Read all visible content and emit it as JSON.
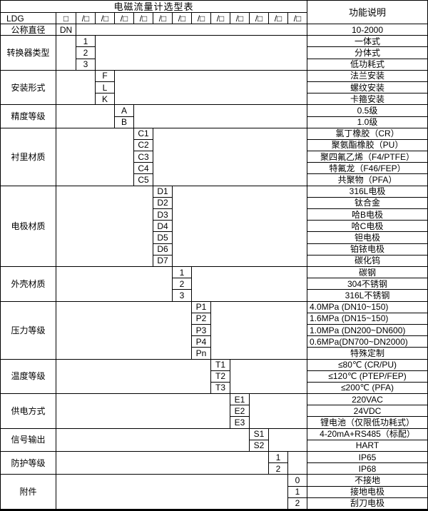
{
  "table": {
    "title": "电磁流量计选型表",
    "function_header": "功能说明",
    "model_code": {
      "prefix": "LDG",
      "box": "□",
      "slot": "/□",
      "slot_count": 12
    },
    "categories": [
      {
        "label": "公称直径",
        "options": [
          {
            "code": "DN",
            "desc": "10-2000"
          }
        ]
      },
      {
        "label": "转换器类型",
        "options": [
          {
            "code": "1",
            "desc": "一体式"
          },
          {
            "code": "2",
            "desc": "分体式"
          },
          {
            "code": "3",
            "desc": "低功耗式"
          }
        ]
      },
      {
        "label": "安装形式",
        "options": [
          {
            "code": "F",
            "desc": "法兰安装"
          },
          {
            "code": "L",
            "desc": "螺纹安装"
          },
          {
            "code": "K",
            "desc": "卡箍安装"
          }
        ]
      },
      {
        "label": "精度等级",
        "options": [
          {
            "code": "A",
            "desc": "0.5级"
          },
          {
            "code": "B",
            "desc": "1.0级"
          }
        ]
      },
      {
        "label": "衬里材质",
        "options": [
          {
            "code": "C1",
            "desc": "氯丁橡胶（CR）"
          },
          {
            "code": "C2",
            "desc": "聚氨酯橡胶（PU）"
          },
          {
            "code": "C3",
            "desc": "聚四氟乙烯（F4/PTFE）"
          },
          {
            "code": "C4",
            "desc": "特氟龙（F46/FEP）"
          },
          {
            "code": "C5",
            "desc": "共聚物（PFA）"
          }
        ]
      },
      {
        "label": "电极材质",
        "options": [
          {
            "code": "D1",
            "desc": "316L电极"
          },
          {
            "code": "D2",
            "desc": "钛合金"
          },
          {
            "code": "D3",
            "desc": "哈B电极"
          },
          {
            "code": "D4",
            "desc": "哈C电极"
          },
          {
            "code": "D5",
            "desc": "钽电极"
          },
          {
            "code": "D6",
            "desc": "铂铱电极"
          },
          {
            "code": "D7",
            "desc": "碳化钨"
          }
        ]
      },
      {
        "label": "外壳材质",
        "options": [
          {
            "code": "1",
            "desc": "碳钢"
          },
          {
            "code": "2",
            "desc": "304不锈钢"
          },
          {
            "code": "3",
            "desc": "316L不锈钢"
          }
        ]
      },
      {
        "label": "压力等级",
        "options": [
          {
            "code": "P1",
            "desc": "4.0MPa (DN10~150)",
            "align": "left"
          },
          {
            "code": "P2",
            "desc": "1.6MPa (DN15~150)",
            "align": "left"
          },
          {
            "code": "P3",
            "desc": "1.0MPa (DN200~DN600)",
            "align": "left"
          },
          {
            "code": "P4",
            "desc": "0.6MPa(DN700~DN2000)",
            "align": "left"
          },
          {
            "code": "Pn",
            "desc": "特殊定制"
          }
        ]
      },
      {
        "label": "温度等级",
        "options": [
          {
            "code": "T1",
            "desc": "≤80℃ (CR/PU)"
          },
          {
            "code": "T2",
            "desc": "≤120℃ (PTEP/FEP)"
          },
          {
            "code": "T3",
            "desc": "≤200℃ (PFA)"
          }
        ]
      },
      {
        "label": "供电方式",
        "options": [
          {
            "code": "E1",
            "desc": "220VAC"
          },
          {
            "code": "E2",
            "desc": "24VDC"
          },
          {
            "code": "E3",
            "desc": "锂电池（仅限低功耗式）"
          }
        ]
      },
      {
        "label": "信号输出",
        "options": [
          {
            "code": "S1",
            "desc": "4-20mA+RS485（标配）"
          },
          {
            "code": "S2",
            "desc": "HART"
          }
        ]
      },
      {
        "label": "防护等级",
        "options": [
          {
            "code": "1",
            "desc": "IP65"
          },
          {
            "code": "2",
            "desc": "IP68"
          }
        ]
      },
      {
        "label": "附件",
        "options": [
          {
            "code": "0",
            "desc": "不接地"
          },
          {
            "code": "1",
            "desc": "接地电极"
          },
          {
            "code": "2",
            "desc": "刮刀电极"
          }
        ]
      }
    ],
    "colors": {
      "border": "#000000",
      "background": "#ffffff",
      "text": "#000000"
    }
  }
}
